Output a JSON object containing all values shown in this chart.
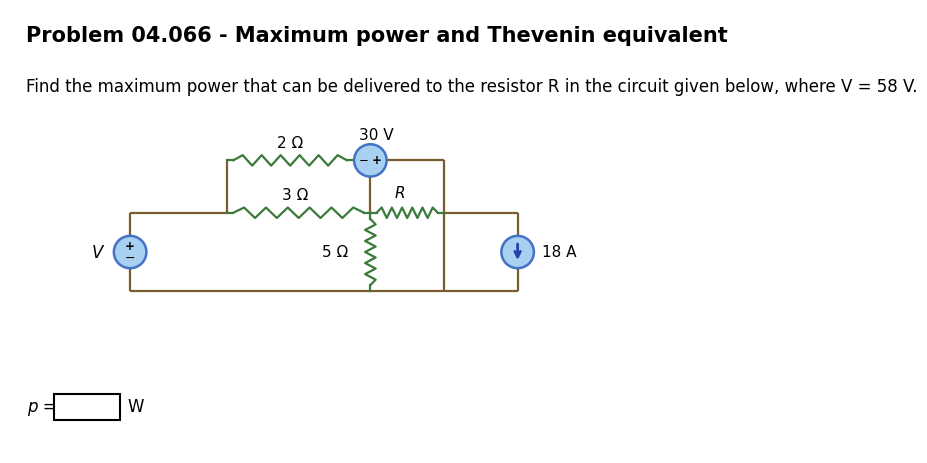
{
  "title": "Problem 04.066 - Maximum power and Thevenin equivalent",
  "problem_text": "Find the maximum power that can be delivered to the resistor R in the circuit given below, where V = 58 V.",
  "answer_label": "p =",
  "answer_unit": "W",
  "bg_color": "#ffffff",
  "title_fontsize": 15,
  "body_fontsize": 12,
  "circuit": {
    "V_source_label": "V",
    "R1_label": "3 Ω",
    "R2_label": "2 Ω",
    "R3_label": "R",
    "R4_label": "5 Ω",
    "V_bat_label": "30 V",
    "I_source_label": "18 A",
    "source_fill": "#a8d0f0",
    "source_edge": "#4472c4",
    "wire_color": "#7a5c2e",
    "resistor_color": "#3a7a3a",
    "arrow_color": "#2244aa"
  }
}
